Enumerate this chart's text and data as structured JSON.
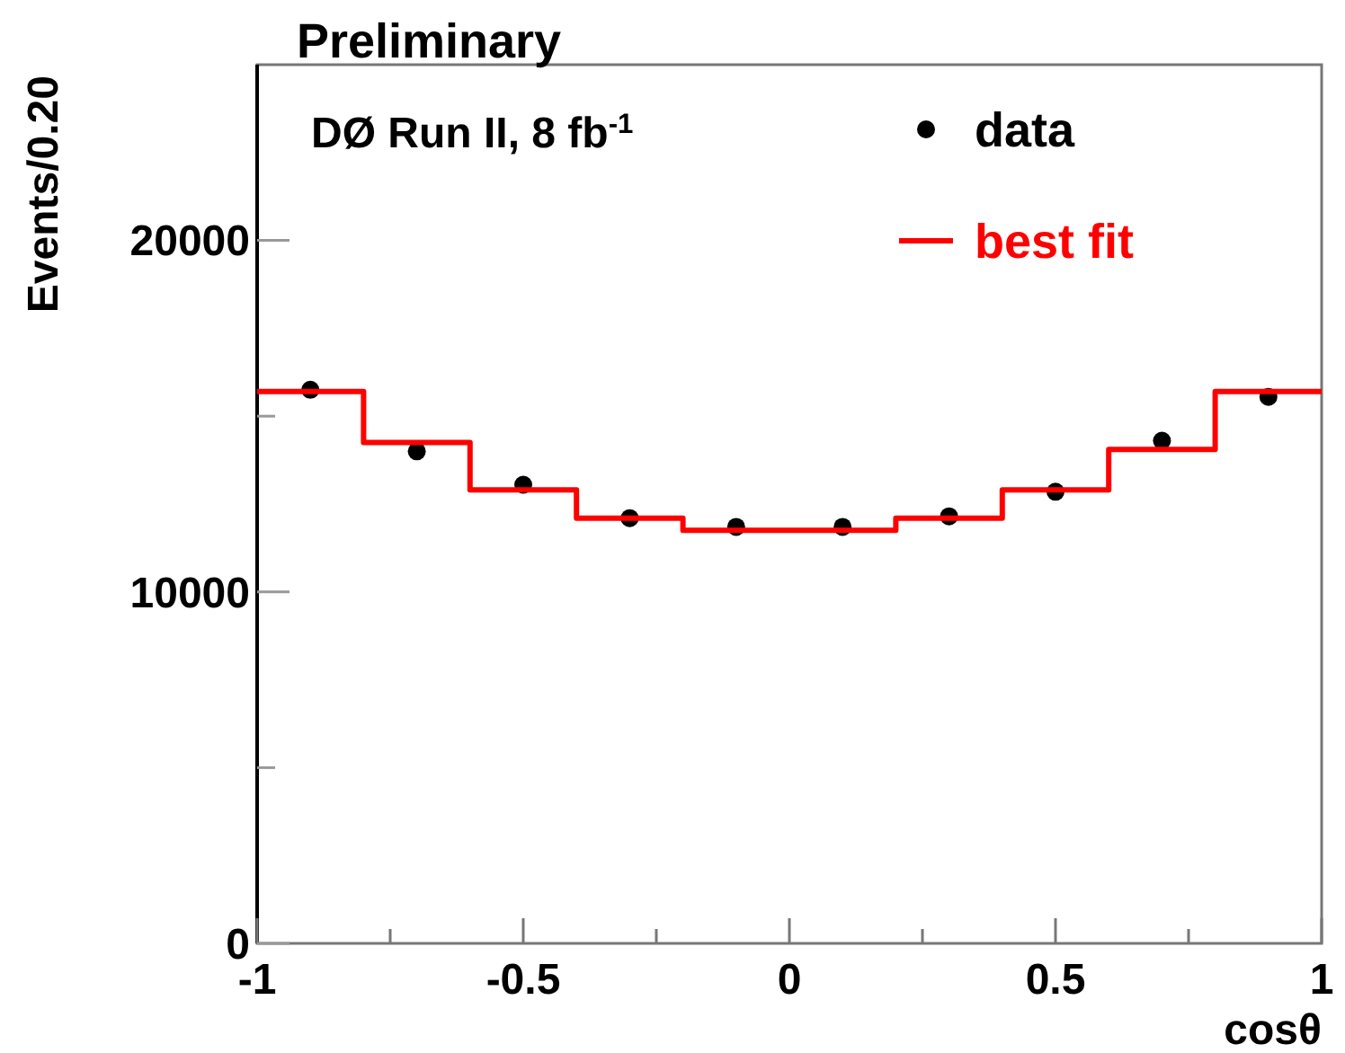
{
  "chart_data": {
    "type": "histogram",
    "title": "Preliminary",
    "xlabel": "cosθ",
    "ylabel": "Events/0.20",
    "annotations": [
      "DØ Run II, 8 fb$^{-1}$"
    ],
    "bins": [
      -1,
      -0.8,
      -0.6,
      -0.4,
      -0.2,
      0,
      0.2,
      0.4,
      0.6,
      0.8,
      1
    ],
    "series": [
      {
        "name": "data",
        "type": "scatter",
        "color": "#000000",
        "marker": "circle",
        "x": [
          -0.9,
          -0.7,
          -0.5,
          -0.3,
          -0.1,
          0.1,
          0.3,
          0.5,
          0.7,
          0.9
        ],
        "values": [
          15750,
          14000,
          13050,
          12100,
          11850,
          11850,
          12150,
          12850,
          14300,
          15550
        ]
      },
      {
        "name": "best fit",
        "color": "#ff0000",
        "values": [
          15700,
          14250,
          12900,
          12100,
          11750,
          11750,
          12100,
          12900,
          14050,
          15700
        ]
      }
    ],
    "xlim": [
      -1,
      1
    ],
    "xticks": [
      -1,
      {
        "value": -0.75,
        "label": null
      },
      -0.5,
      {
        "value": -0.25,
        "label": null
      },
      0,
      {
        "value": 0.25,
        "label": null
      },
      0.5,
      {
        "value": 0.75,
        "label": null
      },
      1
    ],
    "ylim": [
      0,
      25000
    ],
    "yticks": [
      0,
      {
        "value": 5000,
        "label": null
      },
      10000,
      {
        "value": 15000,
        "label": null
      },
      20000
    ],
    "legend": "top right",
    "grid": false
  }
}
